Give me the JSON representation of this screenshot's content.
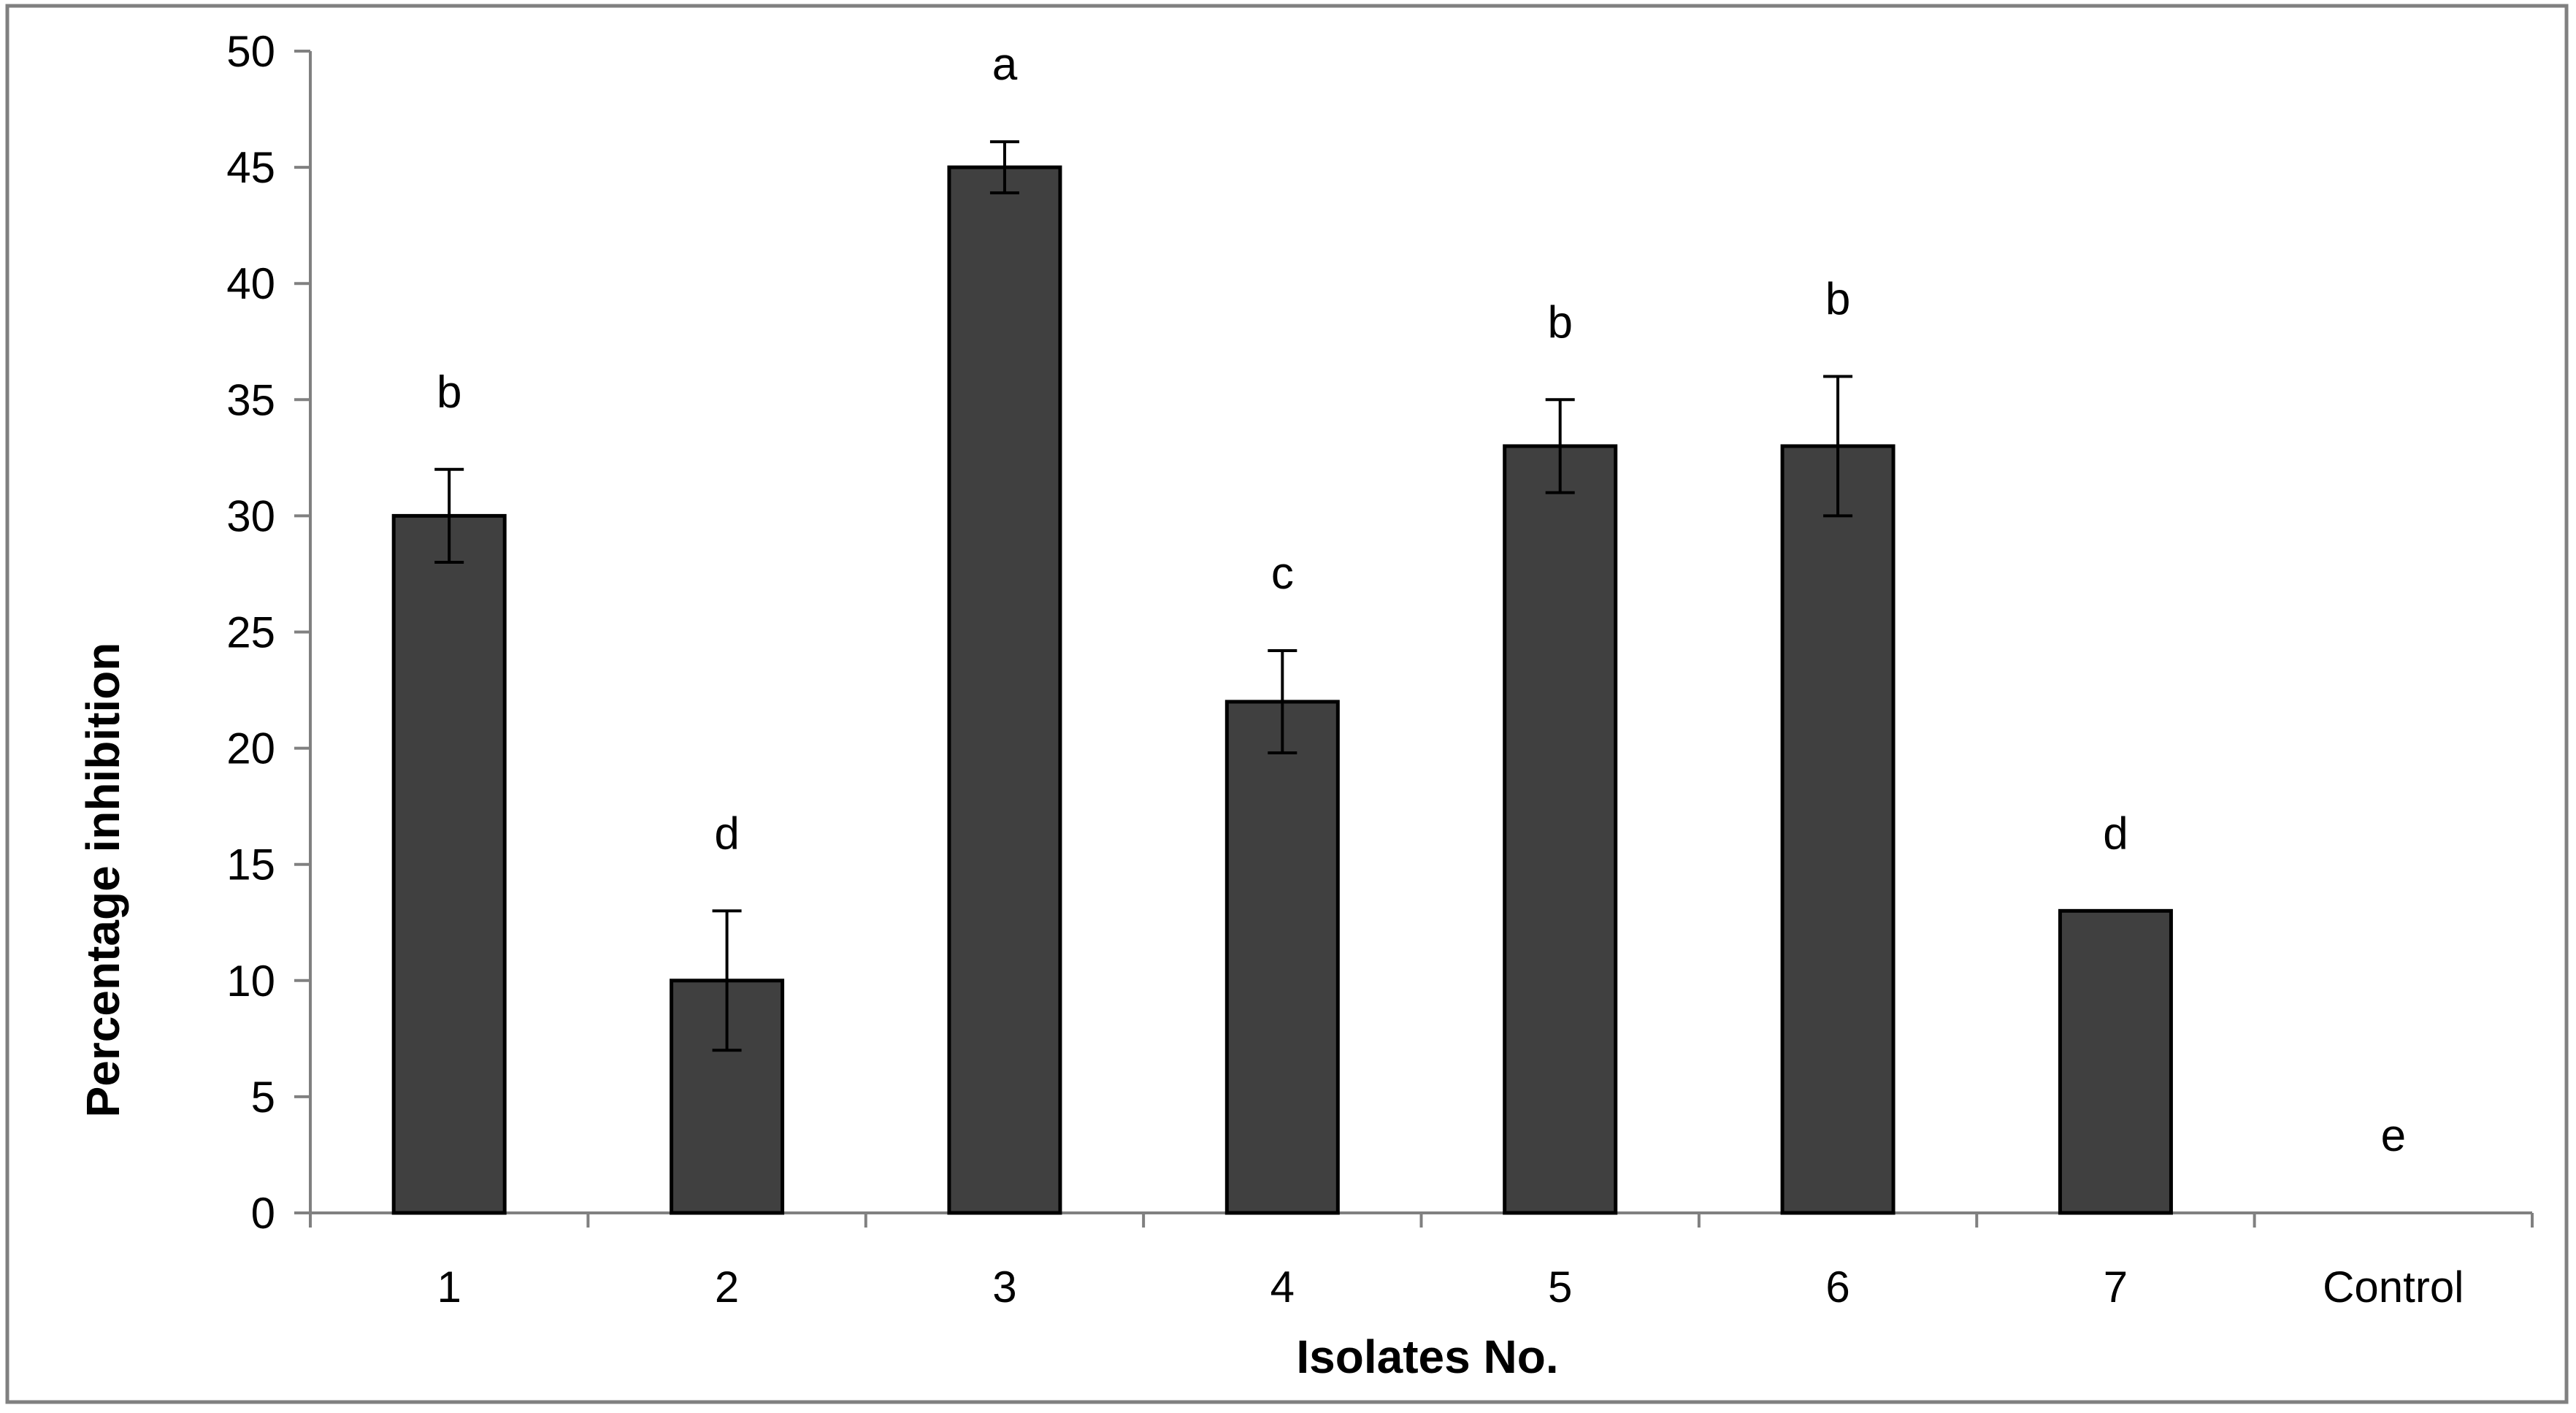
{
  "chart_data": {
    "type": "bar",
    "categories": [
      "1",
      "2",
      "3",
      "4",
      "5",
      "6",
      "7",
      "Control"
    ],
    "values": [
      30,
      10,
      45,
      22,
      33,
      33,
      13,
      0
    ],
    "error": [
      2,
      3,
      1.1,
      2.2,
      2,
      3,
      0,
      0
    ],
    "significance_labels": [
      "b",
      "d",
      "a",
      "c",
      "b",
      "b",
      "d",
      "e"
    ],
    "title": "",
    "xlabel": "Isolates No.",
    "ylabel": "Percentage inhibition",
    "ylim": [
      0,
      50
    ],
    "yticks": [
      "0",
      "5",
      "10",
      "15",
      "20",
      "25",
      "30",
      "35",
      "40",
      "45",
      "50"
    ],
    "grid": false,
    "legend": "none",
    "colors": {
      "bar_fill": "#404040",
      "bar_stroke": "#000000",
      "axis": "#808080",
      "frame": "#808080"
    }
  }
}
